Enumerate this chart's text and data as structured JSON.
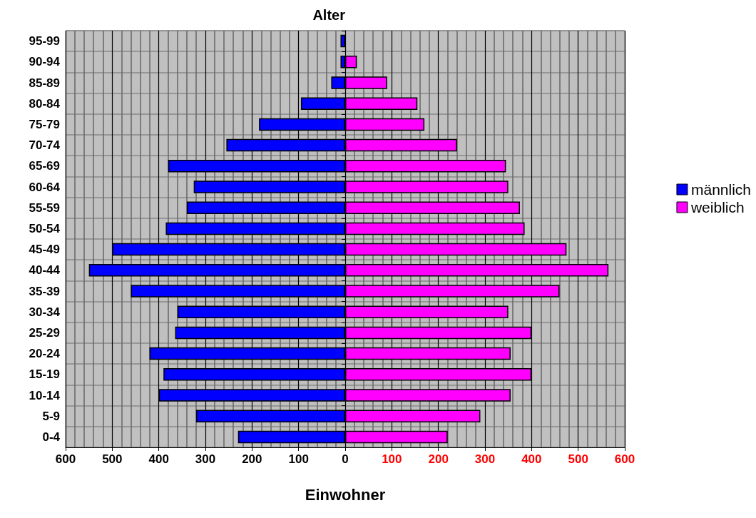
{
  "chart_data": {
    "type": "bar",
    "orientation": "horizontal",
    "xlabel": "Einwohner",
    "ylabel": "Alter",
    "categories": [
      "95-99",
      "90-94",
      "85-89",
      "80-84",
      "75-79",
      "70-74",
      "65-69",
      "60-64",
      "55-59",
      "50-54",
      "45-49",
      "40-44",
      "35-39",
      "30-34",
      "25-29",
      "20-24",
      "15-19",
      "10-14",
      "5-9",
      "0-4"
    ],
    "series": [
      {
        "name": "männlich",
        "color": "#0000ff",
        "values": [
          -10,
          -10,
          -30,
          -95,
          -185,
          -255,
          -380,
          -325,
          -340,
          -385,
          -500,
          -550,
          -460,
          -360,
          -365,
          -420,
          -390,
          -400,
          -320,
          -230
        ]
      },
      {
        "name": "weiblich",
        "color": "#ff00ff",
        "values": [
          null,
          25,
          90,
          155,
          170,
          240,
          345,
          350,
          375,
          385,
          475,
          565,
          460,
          350,
          400,
          355,
          400,
          355,
          290,
          220
        ]
      }
    ],
    "xlim": [
      -600,
      600
    ],
    "xticks": [
      {
        "value": -600,
        "label": "600"
      },
      {
        "value": -500,
        "label": "500"
      },
      {
        "value": -400,
        "label": "400"
      },
      {
        "value": -300,
        "label": "300"
      },
      {
        "value": -200,
        "label": "200"
      },
      {
        "value": -100,
        "label": "100"
      },
      0,
      100,
      200,
      300,
      400,
      500,
      600
    ],
    "stacked": true,
    "grid": true,
    "legend": "right"
  }
}
